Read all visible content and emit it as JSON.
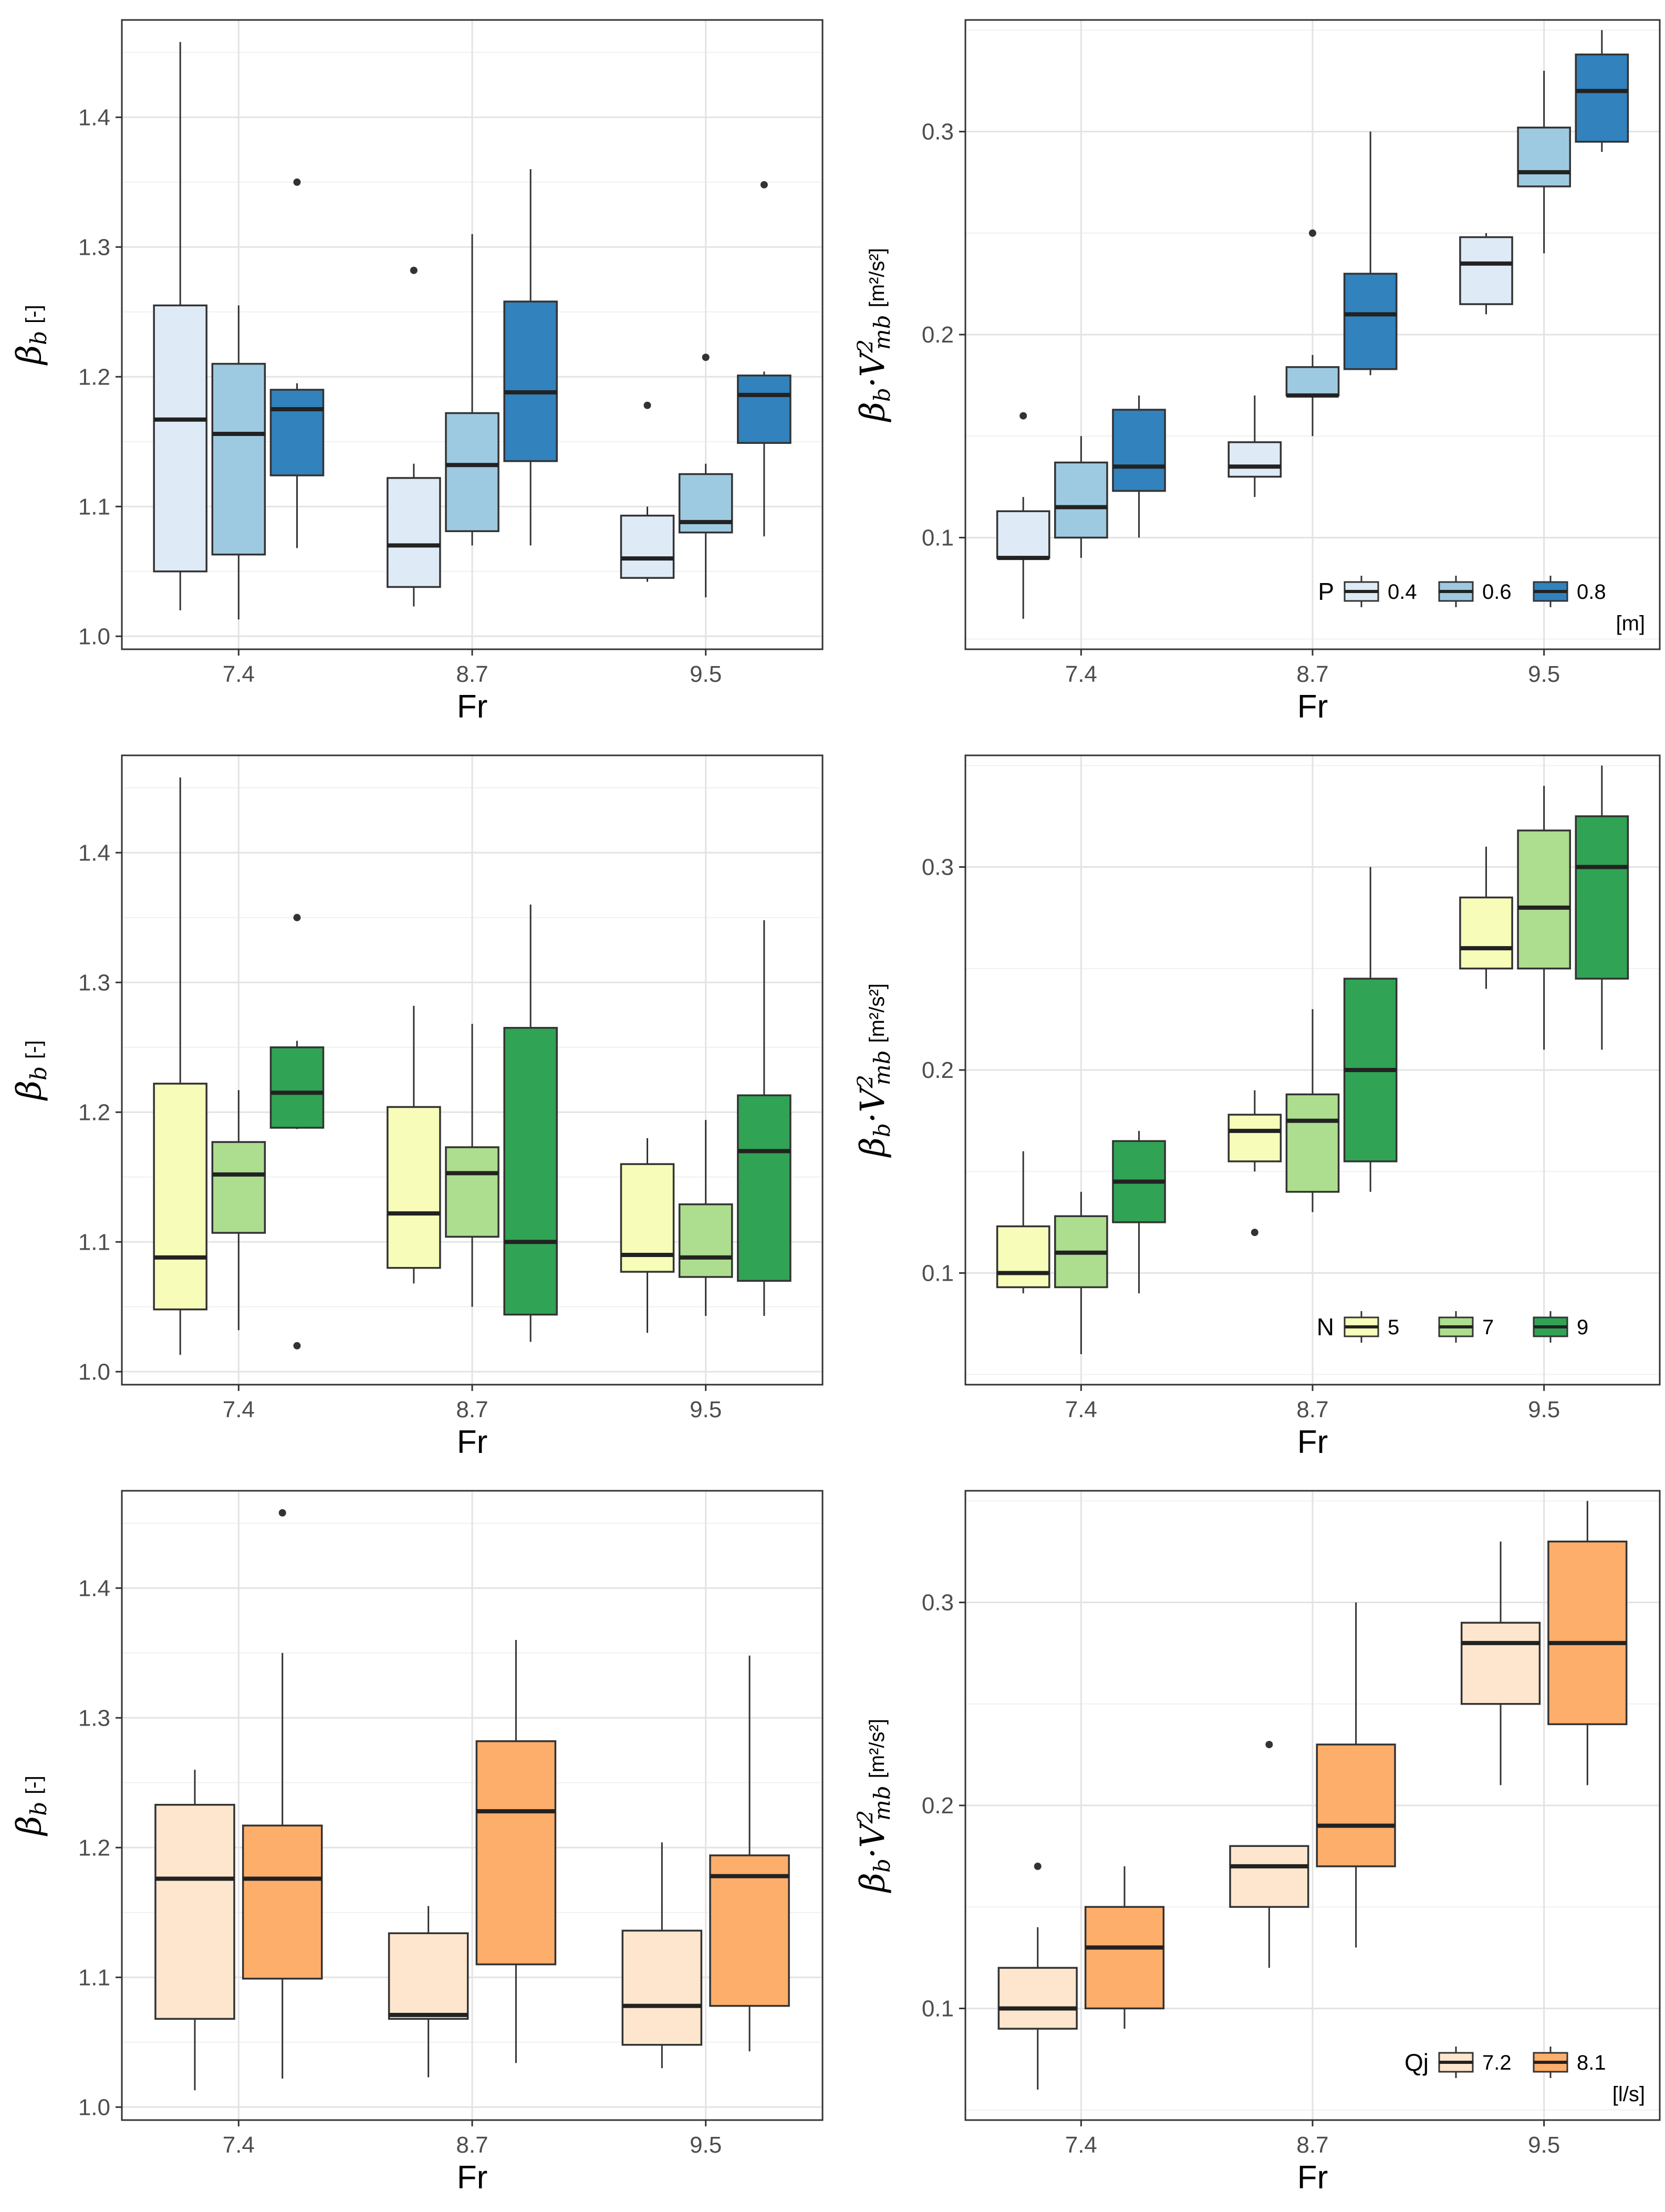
{
  "chart_data": [
    {
      "id": "beta-P",
      "type": "boxplot",
      "xlabel": "Fr",
      "ylabel": "βb [-]",
      "categories": [
        "7.4",
        "8.7",
        "9.5"
      ],
      "ylim": [
        0.99,
        1.475
      ],
      "yticks": [
        1.0,
        1.1,
        1.2,
        1.3,
        1.4
      ],
      "legend": null,
      "series": [
        {
          "name": "0.4",
          "color": "#deebf7",
          "boxes": [
            {
              "lw": 1.02,
              "q1": 1.05,
              "med": 1.167,
              "q3": 1.255,
              "uw": 1.458,
              "out": []
            },
            {
              "lw": 1.023,
              "q1": 1.038,
              "med": 1.07,
              "q3": 1.122,
              "uw": 1.133,
              "out": [
                1.282
              ]
            },
            {
              "lw": 1.042,
              "q1": 1.045,
              "med": 1.06,
              "q3": 1.093,
              "uw": 1.1,
              "out": [
                1.178
              ]
            }
          ]
        },
        {
          "name": "0.6",
          "color": "#9ecae1",
          "boxes": [
            {
              "lw": 1.013,
              "q1": 1.063,
              "med": 1.156,
              "q3": 1.21,
              "uw": 1.255,
              "out": []
            },
            {
              "lw": 1.07,
              "q1": 1.081,
              "med": 1.132,
              "q3": 1.172,
              "uw": 1.31,
              "out": []
            },
            {
              "lw": 1.03,
              "q1": 1.08,
              "med": 1.088,
              "q3": 1.125,
              "uw": 1.133,
              "out": [
                1.215
              ]
            }
          ]
        },
        {
          "name": "0.8",
          "color": "#3182bd",
          "boxes": [
            {
              "lw": 1.068,
              "q1": 1.124,
              "med": 1.175,
              "q3": 1.19,
              "uw": 1.195,
              "out": [
                1.35
              ]
            },
            {
              "lw": 1.07,
              "q1": 1.135,
              "med": 1.188,
              "q3": 1.258,
              "uw": 1.36,
              "out": []
            },
            {
              "lw": 1.077,
              "q1": 1.149,
              "med": 1.186,
              "q3": 1.201,
              "uw": 1.204,
              "out": [
                1.348
              ]
            }
          ]
        }
      ]
    },
    {
      "id": "energy-P",
      "type": "boxplot",
      "xlabel": "Fr",
      "ylabel": "βb·V²mb [m²/s²]",
      "categories": [
        "7.4",
        "8.7",
        "9.5"
      ],
      "ylim": [
        0.045,
        0.355
      ],
      "yticks": [
        0.1,
        0.2,
        0.3
      ],
      "legend": {
        "title": "P",
        "unit": "[m]",
        "position": "bottom-right"
      },
      "series": [
        {
          "name": "0.4",
          "color": "#deebf7",
          "boxes": [
            {
              "lw": 0.06,
              "q1": 0.09,
              "med": 0.09,
              "q3": 0.113,
              "uw": 0.12,
              "out": [
                0.16
              ]
            },
            {
              "lw": 0.12,
              "q1": 0.13,
              "med": 0.135,
              "q3": 0.147,
              "uw": 0.17,
              "out": []
            },
            {
              "lw": 0.21,
              "q1": 0.215,
              "med": 0.235,
              "q3": 0.248,
              "uw": 0.25,
              "out": []
            }
          ]
        },
        {
          "name": "0.6",
          "color": "#9ecae1",
          "boxes": [
            {
              "lw": 0.09,
              "q1": 0.1,
              "med": 0.115,
              "q3": 0.137,
              "uw": 0.15,
              "out": []
            },
            {
              "lw": 0.15,
              "q1": 0.17,
              "med": 0.17,
              "q3": 0.184,
              "uw": 0.19,
              "out": [
                0.25
              ]
            },
            {
              "lw": 0.24,
              "q1": 0.273,
              "med": 0.28,
              "q3": 0.302,
              "uw": 0.33,
              "out": []
            }
          ]
        },
        {
          "name": "0.8",
          "color": "#3182bd",
          "boxes": [
            {
              "lw": 0.1,
              "q1": 0.123,
              "med": 0.135,
              "q3": 0.163,
              "uw": 0.17,
              "out": []
            },
            {
              "lw": 0.18,
              "q1": 0.183,
              "med": 0.21,
              "q3": 0.23,
              "uw": 0.3,
              "out": []
            },
            {
              "lw": 0.29,
              "q1": 0.295,
              "med": 0.32,
              "q3": 0.338,
              "uw": 0.35,
              "out": []
            }
          ]
        }
      ]
    },
    {
      "id": "beta-N",
      "type": "boxplot",
      "xlabel": "Fr",
      "ylabel": "βb [-]",
      "categories": [
        "7.4",
        "8.7",
        "9.5"
      ],
      "ylim": [
        0.99,
        1.475
      ],
      "yticks": [
        1.0,
        1.1,
        1.2,
        1.3,
        1.4
      ],
      "legend": null,
      "series": [
        {
          "name": "5",
          "color": "#f7fcb9",
          "boxes": [
            {
              "lw": 1.013,
              "q1": 1.048,
              "med": 1.088,
              "q3": 1.222,
              "uw": 1.458,
              "out": []
            },
            {
              "lw": 1.068,
              "q1": 1.08,
              "med": 1.122,
              "q3": 1.204,
              "uw": 1.282,
              "out": []
            },
            {
              "lw": 1.03,
              "q1": 1.077,
              "med": 1.09,
              "q3": 1.16,
              "uw": 1.18,
              "out": []
            }
          ]
        },
        {
          "name": "7",
          "color": "#addd8e",
          "boxes": [
            {
              "lw": 1.032,
              "q1": 1.107,
              "med": 1.152,
              "q3": 1.177,
              "uw": 1.217,
              "out": []
            },
            {
              "lw": 1.05,
              "q1": 1.104,
              "med": 1.153,
              "q3": 1.173,
              "uw": 1.268,
              "out": []
            },
            {
              "lw": 1.043,
              "q1": 1.073,
              "med": 1.088,
              "q3": 1.129,
              "uw": 1.194,
              "out": []
            }
          ]
        },
        {
          "name": "9",
          "color": "#31a354",
          "boxes": [
            {
              "lw": 1.187,
              "q1": 1.188,
              "med": 1.215,
              "q3": 1.25,
              "uw": 1.255,
              "out": [
                1.35,
                1.02
              ]
            },
            {
              "lw": 1.023,
              "q1": 1.044,
              "med": 1.1,
              "q3": 1.265,
              "uw": 1.36,
              "out": []
            },
            {
              "lw": 1.043,
              "q1": 1.07,
              "med": 1.17,
              "q3": 1.213,
              "uw": 1.348,
              "out": []
            }
          ]
        }
      ]
    },
    {
      "id": "energy-N",
      "type": "boxplot",
      "xlabel": "Fr",
      "ylabel": "βb·V²mb [m²/s²]",
      "categories": [
        "7.4",
        "8.7",
        "9.5"
      ],
      "ylim": [
        0.045,
        0.355
      ],
      "yticks": [
        0.1,
        0.2,
        0.3
      ],
      "legend": {
        "title": "N",
        "unit": "",
        "position": "bottom-right"
      },
      "series": [
        {
          "name": "5",
          "color": "#f7fcb9",
          "boxes": [
            {
              "lw": 0.09,
              "q1": 0.093,
              "med": 0.1,
              "q3": 0.123,
              "uw": 0.16,
              "out": []
            },
            {
              "lw": 0.15,
              "q1": 0.155,
              "med": 0.17,
              "q3": 0.178,
              "uw": 0.19,
              "out": [
                0.12
              ]
            },
            {
              "lw": 0.24,
              "q1": 0.25,
              "med": 0.26,
              "q3": 0.285,
              "uw": 0.31,
              "out": []
            }
          ]
        },
        {
          "name": "7",
          "color": "#addd8e",
          "boxes": [
            {
              "lw": 0.06,
              "q1": 0.093,
              "med": 0.11,
              "q3": 0.128,
              "uw": 0.14,
              "out": []
            },
            {
              "lw": 0.13,
              "q1": 0.14,
              "med": 0.175,
              "q3": 0.188,
              "uw": 0.23,
              "out": []
            },
            {
              "lw": 0.21,
              "q1": 0.25,
              "med": 0.28,
              "q3": 0.318,
              "uw": 0.34,
              "out": []
            }
          ]
        },
        {
          "name": "9",
          "color": "#31a354",
          "boxes": [
            {
              "lw": 0.09,
              "q1": 0.125,
              "med": 0.145,
              "q3": 0.165,
              "uw": 0.17,
              "out": []
            },
            {
              "lw": 0.14,
              "q1": 0.155,
              "med": 0.2,
              "q3": 0.245,
              "uw": 0.3,
              "out": []
            },
            {
              "lw": 0.21,
              "q1": 0.245,
              "med": 0.3,
              "q3": 0.325,
              "uw": 0.35,
              "out": []
            }
          ]
        }
      ]
    },
    {
      "id": "beta-Qj",
      "type": "boxplot",
      "xlabel": "Fr",
      "ylabel": "βb [-]",
      "categories": [
        "7.4",
        "8.7",
        "9.5"
      ],
      "ylim": [
        0.99,
        1.475
      ],
      "yticks": [
        1.0,
        1.1,
        1.2,
        1.3,
        1.4
      ],
      "legend": null,
      "series": [
        {
          "name": "7.2",
          "color": "#fee6ce",
          "boxes": [
            {
              "lw": 1.013,
              "q1": 1.068,
              "med": 1.176,
              "q3": 1.233,
              "uw": 1.26,
              "out": []
            },
            {
              "lw": 1.023,
              "q1": 1.068,
              "med": 1.071,
              "q3": 1.134,
              "uw": 1.155,
              "out": []
            },
            {
              "lw": 1.03,
              "q1": 1.048,
              "med": 1.078,
              "q3": 1.136,
              "uw": 1.204,
              "out": []
            }
          ]
        },
        {
          "name": "8.1",
          "color": "#fdae6b",
          "boxes": [
            {
              "lw": 1.022,
              "q1": 1.099,
              "med": 1.176,
              "q3": 1.217,
              "uw": 1.35,
              "out": [
                1.458
              ]
            },
            {
              "lw": 1.034,
              "q1": 1.11,
              "med": 1.228,
              "q3": 1.282,
              "uw": 1.36,
              "out": []
            },
            {
              "lw": 1.043,
              "q1": 1.078,
              "med": 1.178,
              "q3": 1.194,
              "uw": 1.348,
              "out": []
            }
          ]
        }
      ]
    },
    {
      "id": "energy-Qj",
      "type": "boxplot",
      "xlabel": "Fr",
      "ylabel": "βb·V²mb [m²/s²]",
      "categories": [
        "7.4",
        "8.7",
        "9.5"
      ],
      "ylim": [
        0.045,
        0.355
      ],
      "yticks": [
        0.1,
        0.2,
        0.3
      ],
      "legend": {
        "title": "Qj",
        "unit": "[l/s]",
        "position": "bottom-right"
      },
      "series": [
        {
          "name": "7.2",
          "color": "#fee6ce",
          "boxes": [
            {
              "lw": 0.06,
              "q1": 0.09,
              "med": 0.1,
              "q3": 0.12,
              "uw": 0.14,
              "out": [
                0.17
              ]
            },
            {
              "lw": 0.12,
              "q1": 0.15,
              "med": 0.17,
              "q3": 0.18,
              "uw": 0.18,
              "out": [
                0.23
              ]
            },
            {
              "lw": 0.21,
              "q1": 0.25,
              "med": 0.28,
              "q3": 0.29,
              "uw": 0.33,
              "out": []
            }
          ]
        },
        {
          "name": "8.1",
          "color": "#fdae6b",
          "boxes": [
            {
              "lw": 0.09,
              "q1": 0.1,
              "med": 0.13,
              "q3": 0.15,
              "uw": 0.17,
              "out": []
            },
            {
              "lw": 0.13,
              "q1": 0.17,
              "med": 0.19,
              "q3": 0.23,
              "uw": 0.3,
              "out": []
            },
            {
              "lw": 0.21,
              "q1": 0.24,
              "med": 0.28,
              "q3": 0.33,
              "uw": 0.35,
              "out": []
            }
          ]
        }
      ]
    }
  ]
}
